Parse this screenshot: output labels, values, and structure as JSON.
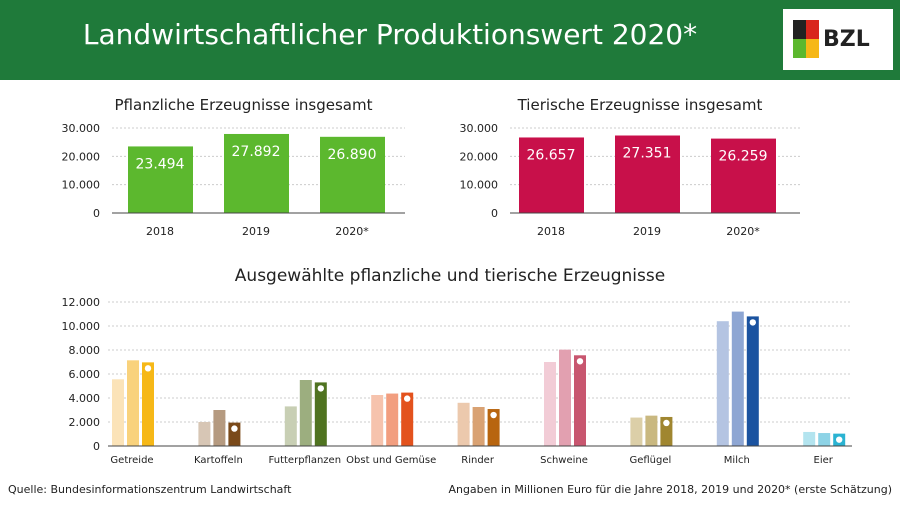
{
  "header": {
    "title": "Landwirtschaftlicher Produktionswert 2020*",
    "logo_text": "BZL"
  },
  "footer": {
    "source": "Quelle: Bundesinformationszentrum Landwirtschaft",
    "note": "Angaben in Millionen Euro für die Jahre 2018, 2019 und 2020* (erste Schätzung)"
  },
  "chart_data": [
    {
      "type": "bar",
      "title": "Pflanzliche Erzeugnisse insgesamt",
      "categories": [
        "2018",
        "2019",
        "2020*"
      ],
      "values": [
        23494,
        27892,
        26890
      ],
      "data_labels": [
        "23.494",
        "27.892",
        "26.890"
      ],
      "ylim": [
        0,
        30000
      ],
      "yticks": [
        "0",
        "10.000",
        "20.000",
        "30.000"
      ],
      "color": "#5cb82e",
      "grid": true
    },
    {
      "type": "bar",
      "title": "Tierische Erzeugnisse insgesamt",
      "categories": [
        "2018",
        "2019",
        "2020*"
      ],
      "values": [
        26657,
        27351,
        26259
      ],
      "data_labels": [
        "26.657",
        "27.351",
        "26.259"
      ],
      "ylim": [
        0,
        30000
      ],
      "yticks": [
        "0",
        "10.000",
        "20.000",
        "30.000"
      ],
      "color": "#c8104a",
      "grid": true
    },
    {
      "type": "bar",
      "title": "Ausgewählte pflanzliche und tierische Erzeugnisse",
      "categories": [
        "Getreide",
        "Kartoffeln",
        "Futterpflanzen",
        "Obst und Gemüse",
        "Rinder",
        "Schweine",
        "Geflügel",
        "Milch",
        "Eier"
      ],
      "series": [
        {
          "values": [
            5560,
            2000,
            3300,
            4250,
            3600,
            7000,
            2370,
            10400,
            1170
          ]
        },
        {
          "values": [
            7140,
            3000,
            5500,
            4370,
            3250,
            8030,
            2530,
            11200,
            1080
          ]
        },
        {
          "values": [
            6970,
            1950,
            5300,
            4450,
            3080,
            7560,
            2420,
            10800,
            1030
          ]
        }
      ],
      "colors": [
        [
          "#fbe3b8",
          "#f9d27c",
          "#f6b817"
        ],
        [
          "#d7c6b5",
          "#b59a80",
          "#7a4a1a"
        ],
        [
          "#c8cfb4",
          "#9cae7f",
          "#4f7320"
        ],
        [
          "#f6c3ad",
          "#f29e7f",
          "#e3521d"
        ],
        [
          "#ecc9ad",
          "#d9a273",
          "#b8650f"
        ],
        [
          "#f2ccd6",
          "#e2a0b0",
          "#c8566f"
        ],
        [
          "#dccfa8",
          "#c9b880",
          "#a08630"
        ],
        [
          "#b4c4e2",
          "#8ea6d3",
          "#1b53a0"
        ],
        [
          "#b3e4ef",
          "#8dd3e6",
          "#2bb3d2"
        ]
      ],
      "ylim": [
        0,
        12000
      ],
      "yticks": [
        "0",
        "2.000",
        "4.000",
        "6.000",
        "8.000",
        "10.000",
        "12.000"
      ],
      "grid": true
    }
  ]
}
